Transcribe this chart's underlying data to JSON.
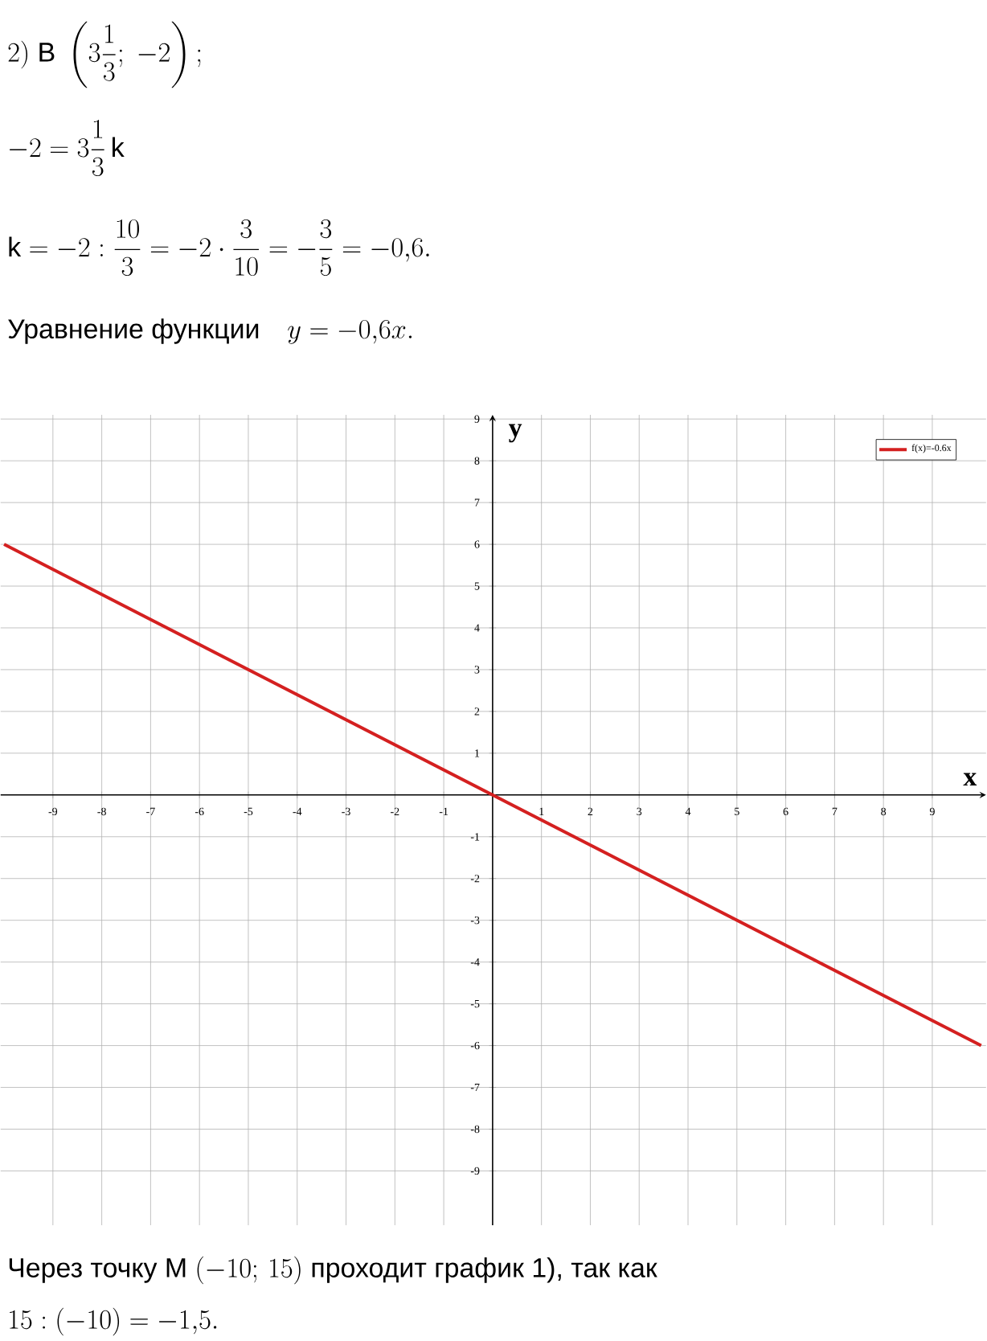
{
  "chart_data": {
    "type": "line",
    "annotations": [
      "2)\\ \\text{В}\\ \\left(3\\dfrac{1}{3};\\ -2\\right);",
      "-2=3\\dfrac{1}{3}\\,\\text{k}",
      "\\text{k}=-2:\\dfrac{10}{3}=-2\\cdot\\dfrac{3}{10}=-\\dfrac{3}{5}=-0{,}6.",
      "\\text{Уравнение функции}\\quad y=-0{,}6x.",
      "\\text{Через точку M}\\ (-10;\\,15)\\ \\text{проходит график 1), так как}",
      "15:(-10)=-1{,}5."
    ],
    "xlabel": "x",
    "ylabel": "y",
    "x": [
      -10,
      10
    ],
    "series": [
      {
        "name": "f(x)=-0.6x",
        "color": "#d42020",
        "values": [
          6,
          -6
        ]
      }
    ],
    "xlim": [
      -10.07,
      10.1
    ],
    "ylim": [
      -10.3,
      9.1
    ],
    "xticks": [
      -9,
      -8,
      -7,
      -6,
      -5,
      -4,
      -3,
      -2,
      -1,
      {
        "value": 0,
        "label": null
      },
      1,
      2,
      3,
      4,
      5,
      6,
      7,
      8,
      9
    ],
    "yticks": [
      -9,
      -8,
      -7,
      -6,
      -5,
      -4,
      -3,
      -2,
      -1,
      {
        "value": 0,
        "label": null
      },
      1,
      2,
      3,
      4,
      5,
      6,
      7,
      8,
      9
    ],
    "grid": true,
    "legend": "top right"
  }
}
